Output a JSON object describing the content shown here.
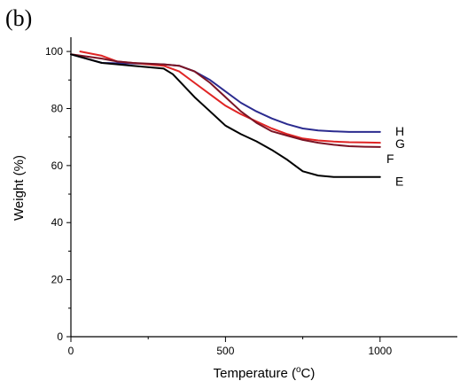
{
  "chart_data": {
    "type": "line",
    "panel_label": "(b)",
    "xlabel": "Temperature (°C)",
    "xlabel_base": "Temperature (",
    "xlabel_sup": "o",
    "xlabel_unit": "C)",
    "ylabel": "Weight (%)",
    "xlim": [
      0,
      1250
    ],
    "ylim": [
      0,
      105
    ],
    "x_ticks": [
      0,
      500,
      1000
    ],
    "x_minor_ticks": [
      250,
      750
    ],
    "y_ticks": [
      0,
      20,
      40,
      60,
      80,
      100
    ],
    "grid": false,
    "series": [
      {
        "name": "H",
        "color": "#2b2b8f",
        "x": [
          0,
          100,
          200,
          300,
          350,
          400,
          450,
          500,
          550,
          600,
          650,
          700,
          750,
          800,
          850,
          900,
          950,
          1000
        ],
        "y": [
          99,
          96,
          95.8,
          95.5,
          95,
          93,
          90,
          86,
          82,
          79,
          76.5,
          74.5,
          73,
          72.3,
          72,
          71.8,
          71.8,
          71.8
        ]
      },
      {
        "name": "G",
        "color": "#e02424",
        "x": [
          30,
          100,
          150,
          200,
          300,
          350,
          400,
          450,
          500,
          550,
          600,
          650,
          700,
          750,
          800,
          850,
          900,
          950,
          1000
        ],
        "y": [
          100,
          98.5,
          96.5,
          96,
          95,
          93,
          89,
          85,
          81,
          78,
          75.5,
          73,
          71,
          69.5,
          68.8,
          68.4,
          68.2,
          68.1,
          68
        ]
      },
      {
        "name": "F",
        "color": "#7a1425",
        "x": [
          0,
          100,
          150,
          200,
          300,
          350,
          400,
          450,
          500,
          550,
          600,
          650,
          700,
          750,
          800,
          850,
          900,
          950,
          1000
        ],
        "y": [
          99,
          97.5,
          96.5,
          96,
          95.5,
          95,
          93,
          89,
          84,
          79,
          75,
          72,
          70.5,
          69,
          68,
          67.3,
          66.8,
          66.6,
          66.5
        ]
      },
      {
        "name": "E",
        "color": "#000000",
        "x": [
          0,
          100,
          200,
          300,
          330,
          400,
          450,
          500,
          550,
          600,
          650,
          700,
          750,
          800,
          850,
          900,
          950,
          1000
        ],
        "y": [
          99,
          96,
          95,
          94,
          92,
          84,
          79,
          74,
          71,
          68.5,
          65.5,
          62,
          58,
          56.5,
          56,
          56,
          56,
          56
        ]
      }
    ],
    "series_label_offsets": {
      "H": 0,
      "G": 0,
      "F": 0,
      "E": 0
    }
  }
}
